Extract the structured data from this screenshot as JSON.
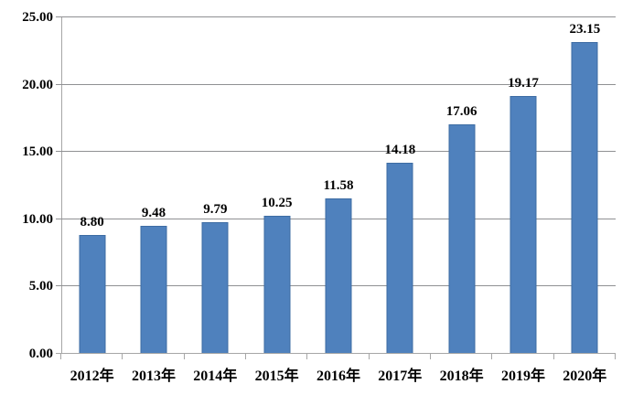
{
  "chart_data": {
    "type": "bar",
    "title": "",
    "xlabel": "",
    "ylabel": "",
    "categories": [
      "2012年",
      "2013年",
      "2014年",
      "2015年",
      "2016年",
      "2017年",
      "2018年",
      "2019年",
      "2020年"
    ],
    "values": [
      8.8,
      9.48,
      9.79,
      10.25,
      11.58,
      14.18,
      17.06,
      19.17,
      23.15
    ],
    "data_labels": [
      "8.80",
      "9.48",
      "9.79",
      "10.25",
      "11.58",
      "14.18",
      "17.06",
      "19.17",
      "23.15"
    ],
    "ylim": [
      0,
      25
    ],
    "ytick_step": 5,
    "ytick_labels": [
      "0.00",
      "5.00",
      "10.00",
      "15.00",
      "20.00",
      "25.00"
    ],
    "grid": true,
    "legend": false,
    "colors": {
      "bar_fill": "#4f81bd",
      "bar_border": "#3d6ca3",
      "gridline": "#8f9093",
      "axis": "#a6a6a6",
      "text": "#000000",
      "background": "#ffffff"
    }
  }
}
